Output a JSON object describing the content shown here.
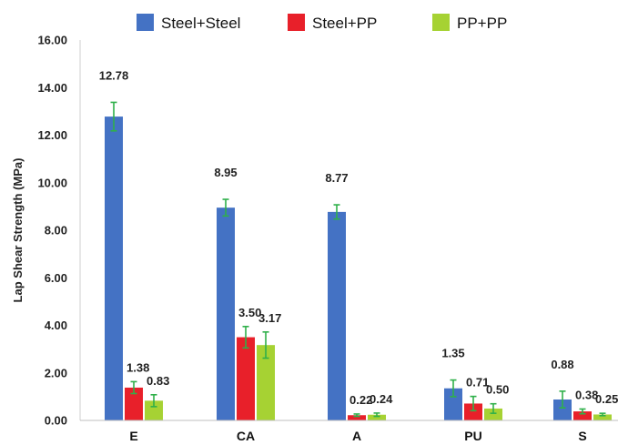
{
  "chart_data": {
    "type": "bar",
    "title": "",
    "xlabel": "",
    "ylabel": "Lap Shear Strength (MPa)",
    "ylim": [
      0,
      16
    ],
    "yticks": [
      "0.00",
      "2.00",
      "4.00",
      "6.00",
      "8.00",
      "10.00",
      "12.00",
      "14.00",
      "16.00"
    ],
    "categories": [
      "E",
      "CA",
      "A",
      "PU",
      "S"
    ],
    "legend_position": "top",
    "grid": false,
    "error_bar_color": "#2fb04a",
    "series": [
      {
        "name": "Steel+Steel",
        "color": "#4472c4",
        "values": [
          12.78,
          8.95,
          8.77,
          1.35,
          0.88
        ],
        "errors": [
          0.6,
          0.35,
          0.3,
          0.35,
          0.35
        ],
        "labels": [
          "12.78",
          "8.95",
          "8.77",
          "1.35",
          "0.88"
        ]
      },
      {
        "name": "Steel+PP",
        "color": "#e8202a",
        "values": [
          1.38,
          3.5,
          0.22,
          0.71,
          0.38
        ],
        "errors": [
          0.25,
          0.45,
          0.05,
          0.3,
          0.1
        ],
        "labels": [
          "1.38",
          "3.50",
          "0.22",
          "0.71",
          "0.38"
        ]
      },
      {
        "name": "PP+PP",
        "color": "#a6d233",
        "values": [
          0.83,
          3.17,
          0.24,
          0.5,
          0.25
        ],
        "errors": [
          0.25,
          0.55,
          0.07,
          0.2,
          0.05
        ],
        "labels": [
          "0.83",
          "3.17",
          "0.24",
          "0.50",
          "0.25"
        ]
      }
    ]
  }
}
